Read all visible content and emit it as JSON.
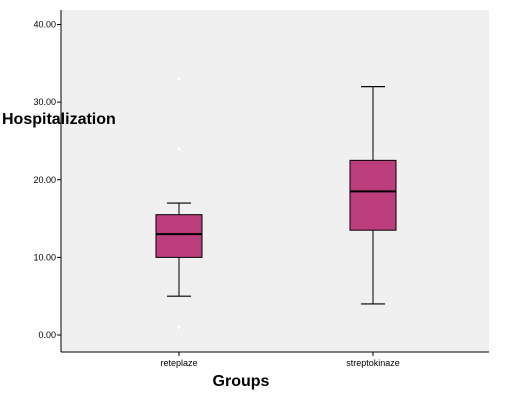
{
  "chart_data": {
    "type": "boxplot",
    "title": "",
    "xlabel": "Groups",
    "ylabel": "Hospitalization",
    "ylim": [
      0,
      42
    ],
    "yticks": [
      0,
      10,
      20,
      30,
      40
    ],
    "ytick_labels": [
      "0.00",
      "10.00",
      "20.00",
      "30.00",
      "40.00"
    ],
    "categories": [
      "reteplaze",
      "streptokinaze"
    ],
    "boxes": [
      {
        "category": "reteplaze",
        "whisker_low": 5,
        "q1": 10,
        "median": 13,
        "q3": 15.5,
        "whisker_high": 17,
        "outliers": [
          1,
          24,
          33
        ]
      },
      {
        "category": "streptokinaze",
        "whisker_low": 4,
        "q1": 13.5,
        "median": 18.5,
        "q3": 22.5,
        "whisker_high": 32,
        "outliers": []
      }
    ],
    "grid": false,
    "colors": {
      "box_fill": "#BD3E7D",
      "plot_background": "#F0F0F0",
      "line": "#000000",
      "outlier": "#FFFFFF"
    }
  }
}
